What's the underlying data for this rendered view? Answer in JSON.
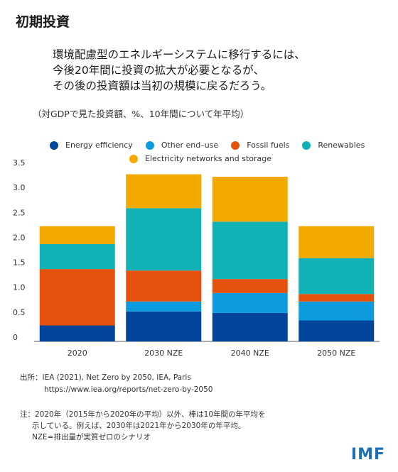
{
  "title": "初期投資",
  "headline": [
    "環境配慮型のエネルギーシステムに移行するには、",
    "今後20年間に投資の拡大が必要となるが、",
    "その後の投資額は当初の規模に戻るだろう。"
  ],
  "subtitle": "（対GDPで見た投資額、%、10年間について年平均）",
  "legend": [
    {
      "label": "Energy efficiency",
      "color": "#00449b"
    },
    {
      "label": "Other end–use",
      "color": "#0d9be0"
    },
    {
      "label": "Fossil fuels",
      "color": "#e4520e"
    },
    {
      "label": "Renewables",
      "color": "#10b2b6"
    },
    {
      "label": "Electricity networks and storage",
      "color": "#f2a900"
    }
  ],
  "chart_data": {
    "type": "bar",
    "stacked": true,
    "categories": [
      "2020",
      "2030 NZE",
      "2040 NZE",
      "2050 NZE"
    ],
    "ylim": [
      0,
      3.5
    ],
    "yticks": [
      "0",
      "0.5",
      "1.0",
      "1.5",
      "2.0",
      "2.5",
      "3.0",
      "3.5"
    ],
    "grid": false,
    "series": [
      {
        "name": "Energy efficiency",
        "color": "#00449b",
        "values": [
          0.32,
          0.6,
          0.57,
          0.42
        ]
      },
      {
        "name": "Other end–use",
        "color": "#0d9be0",
        "values": [
          0.0,
          0.2,
          0.4,
          0.38
        ]
      },
      {
        "name": "Fossil fuels",
        "color": "#e4520e",
        "values": [
          1.13,
          0.62,
          0.28,
          0.15
        ]
      },
      {
        "name": "Renewables",
        "color": "#10b2b6",
        "values": [
          0.5,
          1.25,
          1.15,
          0.72
        ]
      },
      {
        "name": "Electricity networks and storage",
        "color": "#f2a900",
        "values": [
          0.36,
          0.68,
          0.9,
          0.64
        ]
      }
    ]
  },
  "source": {
    "line1": "出所：IEA (2021), Net Zero by 2050, IEA, Paris",
    "line2": "https://www.iea.org/reports/net-zero-by-2050"
  },
  "note": {
    "line1": "注：2020年（2015年から2020年の平均）以外、棒は10年間の年平均を",
    "line2": "示している。例えば、2030年は2021年から2030年の年平均。",
    "line3": "NZE=排出量が実質ゼロのシナリオ"
  },
  "logo": "IMF"
}
